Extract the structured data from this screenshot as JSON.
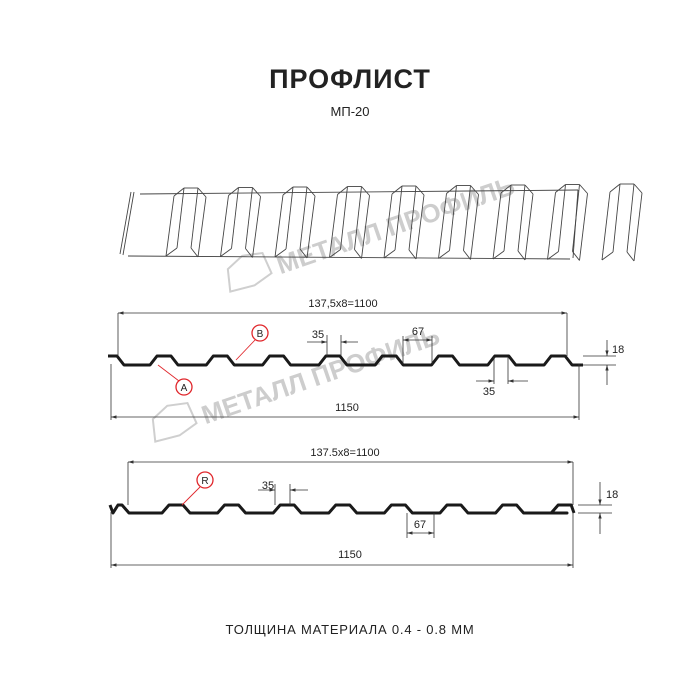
{
  "header": {
    "title": "ПРОФЛИСТ",
    "subtitle": "МП-20"
  },
  "watermark": {
    "text": "МЕТАЛЛ ПРОФИЛЬ",
    "color": "#c8c8c8"
  },
  "profile_a": {
    "pitch_label": "137,5x8=1100",
    "total_label": "1150",
    "top_width_label": "35",
    "bottom_width_label": "67",
    "lower_width_label": "35",
    "height_label": "18",
    "marker_a": "A",
    "marker_b": "B"
  },
  "profile_b": {
    "pitch_label": "137.5x8=1100",
    "total_label": "1150",
    "top_width_label": "35",
    "bottom_width_label": "67",
    "height_label": "18",
    "marker_r": "R"
  },
  "footer": {
    "thickness": "ТОЛЩИНА МАТЕРИАЛА 0.4 - 0.8 ММ"
  },
  "colors": {
    "line": "#1a1a1a",
    "marker": "#e0262b",
    "dim": "#333333"
  }
}
